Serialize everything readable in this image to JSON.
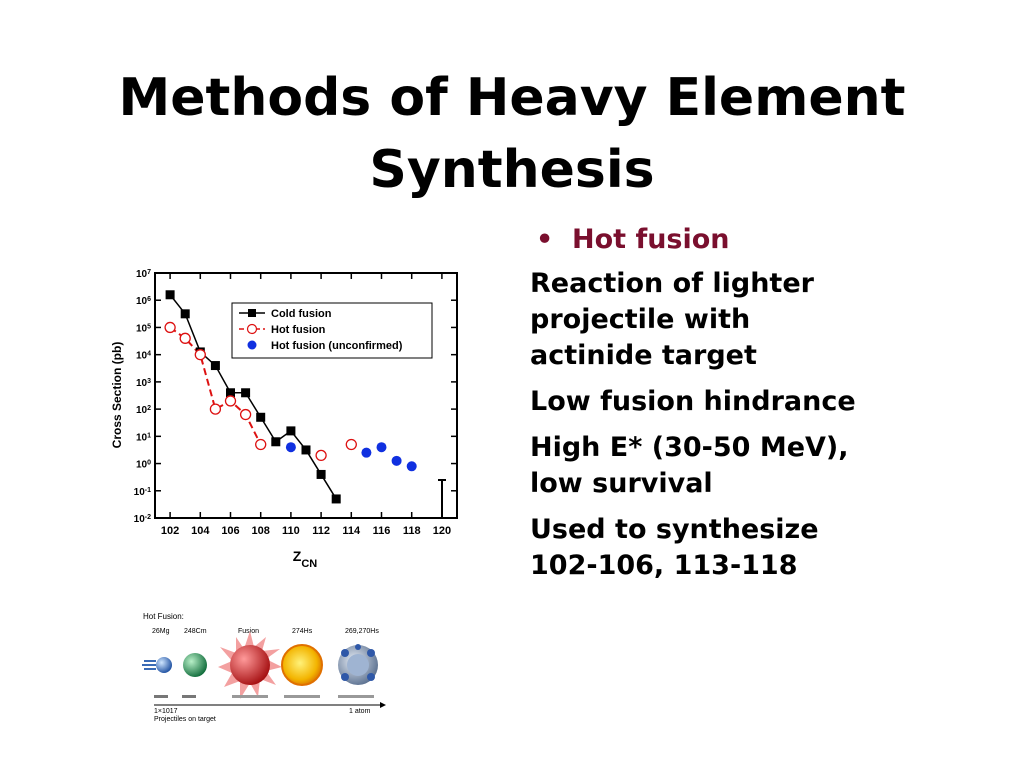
{
  "slide": {
    "title_line1": "Methods of Heavy Element",
    "title_line2": "Synthesis"
  },
  "bullets": {
    "heading": "Hot fusion",
    "heading_color": "#7a0f2e",
    "para1": [
      "Reaction of lighter",
      "projectile with",
      "actinide target"
    ],
    "para2": [
      "Low fusion hindrance"
    ],
    "para3": [
      "High E* (30-50 MeV),",
      "low survival"
    ],
    "para4": [
      "Used to synthesize",
      "102-106, 113-118"
    ]
  },
  "chart_data": {
    "type": "scatter",
    "xlabel": "ZCN",
    "ylabel": "Cross Section (pb)",
    "xlim": [
      101,
      121
    ],
    "ylim_log10": [
      -2,
      7
    ],
    "x_ticks": [
      "102",
      "104",
      "106",
      "108",
      "110",
      "112",
      "114",
      "116",
      "118",
      "120"
    ],
    "legend_position": "top-right",
    "series": [
      {
        "name": "Cold fusion",
        "color": "#000000",
        "marker": "filled-square",
        "x": [
          102,
          103,
          104,
          105,
          106,
          107,
          108,
          109,
          110,
          111,
          112,
          113
        ],
        "y_log10": [
          6.2,
          5.5,
          4.1,
          3.6,
          2.6,
          2.6,
          1.7,
          0.8,
          1.2,
          0.5,
          -0.4,
          -1.3
        ]
      },
      {
        "name": "Hot fusion",
        "color": "#dd1111",
        "marker": "open-circle",
        "x": [
          102,
          103,
          104,
          105,
          106,
          107,
          108,
          112,
          114
        ],
        "y_log10": [
          5.0,
          4.6,
          4.0,
          2.0,
          2.3,
          1.8,
          0.7,
          0.3,
          0.7
        ]
      },
      {
        "name": "Hot fusion (unconfirmed)",
        "color": "#1030e0",
        "marker": "filled-circle",
        "x": [
          110,
          115,
          116,
          117,
          118
        ],
        "y_log10": [
          0.6,
          0.4,
          0.6,
          0.1,
          -0.1
        ]
      }
    ]
  },
  "diagram": {
    "heading": "Hot Fusion:",
    "labels": [
      "26Mg",
      "248Cm",
      "Fusion",
      "274Hs",
      "269,270Hs"
    ],
    "bottom_left_line1": "1×1017",
    "bottom_left_line2": "Projectiles on target",
    "bottom_right": "1 atom"
  }
}
